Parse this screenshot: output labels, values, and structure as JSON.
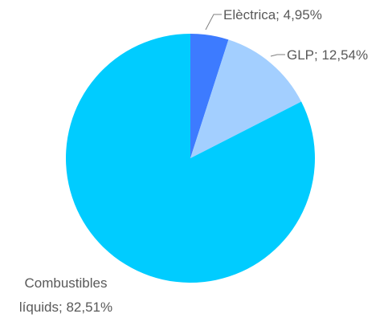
{
  "chart_data": {
    "type": "pie",
    "title": "",
    "slices": [
      {
        "name": "Elèctrica",
        "value": 4.95,
        "value_label": "4,95%",
        "color": "#3d7bff"
      },
      {
        "name": "GLP",
        "value": 12.54,
        "value_label": "12,54%",
        "color": "#a3cfff"
      },
      {
        "name": "Combustibles líquids",
        "value": 82.51,
        "value_label": "82,51%",
        "color": "#00ccff"
      }
    ],
    "data_labels": [
      {
        "lines": [
          "Elèctrica; 4,95%"
        ]
      },
      {
        "lines": [
          "GLP; 12,54%"
        ]
      },
      {
        "lines": [
          "Combustibles",
          "líquids; 82,51%"
        ]
      }
    ],
    "legend": "none"
  }
}
